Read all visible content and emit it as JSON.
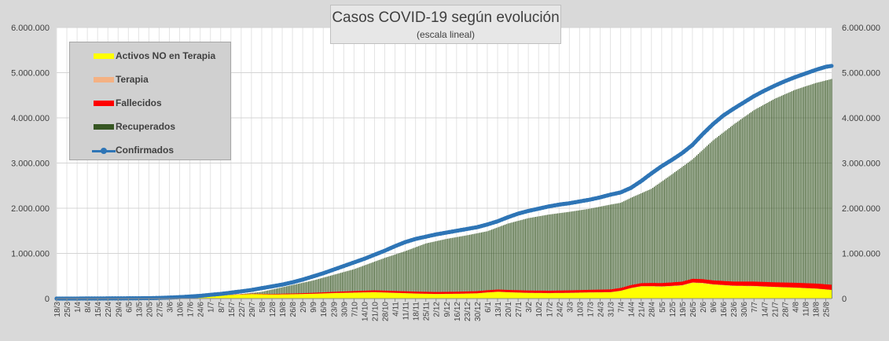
{
  "chart_data": {
    "type": "area",
    "title": "Casos COVID-19 según evolución",
    "subtitle": "(escala lineal)",
    "xlabel": "",
    "ylabel": "",
    "ylim": [
      0,
      6000000
    ],
    "y_ticks": [
      0,
      1000000,
      2000000,
      3000000,
      4000000,
      5000000,
      6000000
    ],
    "y_tick_labels": [
      "0",
      "1.000.000",
      "2.000.000",
      "3.000.000",
      "4.000.000",
      "5.000.000",
      "6.000.000"
    ],
    "secondary_y_tick_labels": [
      "0",
      "1.000.000",
      "2.000.000",
      "3.000.000",
      "4.000.000",
      "5.000.000",
      "6.000.000"
    ],
    "grid": true,
    "legend_position": "top-left",
    "x_tick_labels": [
      "18/3",
      "25/3",
      "1/4",
      "8/4",
      "15/4",
      "22/4",
      "29/4",
      "6/5",
      "13/5",
      "20/5",
      "27/5",
      "3/6",
      "10/6",
      "17/6",
      "24/6",
      "1/7",
      "8/7",
      "15/7",
      "22/7",
      "29/7",
      "5/8",
      "12/8",
      "19/8",
      "26/8",
      "2/9",
      "9/9",
      "16/9",
      "23/9",
      "30/9",
      "7/10",
      "14/10",
      "21/10",
      "28/10",
      "4/11",
      "11/11",
      "18/11",
      "25/11",
      "2/12",
      "9/12",
      "16/12",
      "23/12",
      "30/12",
      "6/1",
      "13/1",
      "20/1",
      "27/1",
      "3/2",
      "10/2",
      "17/2",
      "24/2",
      "3/3",
      "10/3",
      "17/3",
      "24/3",
      "31/3",
      "7/4",
      "14/4",
      "21/4",
      "28/4",
      "5/5",
      "12/5",
      "19/5",
      "26/5",
      "2/6",
      "9/6",
      "16/6",
      "23/6",
      "30/6",
      "7/7",
      "14/7",
      "21/7",
      "28/7",
      "4/8",
      "11/8",
      "18/8",
      "25/8"
    ],
    "x_tick_indices": [
      0,
      7,
      14,
      21,
      28,
      35,
      42,
      49,
      56,
      63,
      70,
      77,
      84,
      91,
      98,
      105,
      112,
      119,
      126,
      133,
      140,
      147,
      154,
      161,
      168,
      175,
      182,
      189,
      196,
      203,
      210,
      217,
      224,
      231,
      238,
      245,
      252,
      259,
      266,
      273,
      280,
      287,
      294,
      301,
      308,
      315,
      322,
      329,
      336,
      343,
      350,
      357,
      364,
      371,
      378,
      385,
      392,
      399,
      406,
      413,
      420,
      427,
      434,
      441,
      448,
      455,
      462,
      469,
      476,
      483,
      490,
      497,
      504,
      511,
      518,
      525
    ],
    "n_days": 530,
    "series": [
      {
        "name": "Activos NO en Terapia",
        "kind": "stacked-area",
        "color": "#ffff00",
        "points": [
          [
            0,
            0
          ],
          [
            40,
            3000
          ],
          [
            63,
            9000
          ],
          [
            84,
            25000
          ],
          [
            105,
            50000
          ],
          [
            119,
            80000
          ],
          [
            133,
            100000
          ],
          [
            147,
            90000
          ],
          [
            161,
            95000
          ],
          [
            175,
            105000
          ],
          [
            189,
            120000
          ],
          [
            203,
            130000
          ],
          [
            217,
            140000
          ],
          [
            231,
            125000
          ],
          [
            245,
            110000
          ],
          [
            259,
            100000
          ],
          [
            273,
            105000
          ],
          [
            287,
            115000
          ],
          [
            294,
            135000
          ],
          [
            301,
            150000
          ],
          [
            308,
            140000
          ],
          [
            322,
            125000
          ],
          [
            336,
            120000
          ],
          [
            350,
            125000
          ],
          [
            364,
            135000
          ],
          [
            378,
            140000
          ],
          [
            385,
            170000
          ],
          [
            392,
            230000
          ],
          [
            399,
            270000
          ],
          [
            406,
            270000
          ],
          [
            413,
            265000
          ],
          [
            420,
            275000
          ],
          [
            427,
            290000
          ],
          [
            434,
            350000
          ],
          [
            441,
            340000
          ],
          [
            448,
            310000
          ],
          [
            462,
            280000
          ],
          [
            476,
            275000
          ],
          [
            490,
            255000
          ],
          [
            504,
            240000
          ],
          [
            518,
            220000
          ],
          [
            529,
            190000
          ]
        ]
      },
      {
        "name": "Terapia",
        "kind": "stacked-area",
        "color": "#f4b183",
        "points": [
          [
            0,
            0
          ],
          [
            63,
            500
          ],
          [
            105,
            1000
          ],
          [
            147,
            2500
          ],
          [
            189,
            3500
          ],
          [
            217,
            4500
          ],
          [
            259,
            3500
          ],
          [
            294,
            3000
          ],
          [
            336,
            3500
          ],
          [
            378,
            4000
          ],
          [
            406,
            7000
          ],
          [
            434,
            7500
          ],
          [
            462,
            6500
          ],
          [
            490,
            5000
          ],
          [
            529,
            4000
          ]
        ]
      },
      {
        "name": "Fallecidos",
        "kind": "stacked-area",
        "color": "#ff0000",
        "points": [
          [
            0,
            0
          ],
          [
            63,
            500
          ],
          [
            105,
            2000
          ],
          [
            147,
            10000
          ],
          [
            189,
            25000
          ],
          [
            217,
            38000
          ],
          [
            245,
            40000
          ],
          [
            273,
            43000
          ],
          [
            301,
            48000
          ],
          [
            336,
            51000
          ],
          [
            364,
            55000
          ],
          [
            392,
            62000
          ],
          [
            420,
            75000
          ],
          [
            448,
            85000
          ],
          [
            476,
            95000
          ],
          [
            504,
            105000
          ],
          [
            529,
            112000
          ]
        ]
      },
      {
        "name": "Recuperados",
        "kind": "bars",
        "color": "#375623",
        "points": [
          [
            0,
            0
          ],
          [
            63,
            3000
          ],
          [
            105,
            25000
          ],
          [
            140,
            150000
          ],
          [
            175,
            400000
          ],
          [
            203,
            650000
          ],
          [
            224,
            900000
          ],
          [
            238,
            1050000
          ],
          [
            252,
            1220000
          ],
          [
            266,
            1320000
          ],
          [
            280,
            1400000
          ],
          [
            294,
            1490000
          ],
          [
            308,
            1660000
          ],
          [
            322,
            1780000
          ],
          [
            336,
            1860000
          ],
          [
            350,
            1920000
          ],
          [
            364,
            1990000
          ],
          [
            378,
            2080000
          ],
          [
            385,
            2120000
          ],
          [
            392,
            2230000
          ],
          [
            406,
            2430000
          ],
          [
            420,
            2750000
          ],
          [
            434,
            3080000
          ],
          [
            448,
            3500000
          ],
          [
            462,
            3850000
          ],
          [
            476,
            4170000
          ],
          [
            490,
            4420000
          ],
          [
            504,
            4620000
          ],
          [
            518,
            4770000
          ],
          [
            529,
            4860000
          ]
        ]
      },
      {
        "name": "Confirmados",
        "kind": "line-markers",
        "color": "#2e75b6",
        "points": [
          [
            0,
            80
          ],
          [
            14,
            1000
          ],
          [
            28,
            2500
          ],
          [
            42,
            4400
          ],
          [
            56,
            7000
          ],
          [
            63,
            9000
          ],
          [
            70,
            14000
          ],
          [
            77,
            22000
          ],
          [
            84,
            32000
          ],
          [
            91,
            45000
          ],
          [
            98,
            60000
          ],
          [
            105,
            83000
          ],
          [
            112,
            103000
          ],
          [
            119,
            130000
          ],
          [
            126,
            160000
          ],
          [
            133,
            190000
          ],
          [
            140,
            230000
          ],
          [
            147,
            270000
          ],
          [
            154,
            310000
          ],
          [
            161,
            360000
          ],
          [
            168,
            420000
          ],
          [
            175,
            490000
          ],
          [
            182,
            560000
          ],
          [
            189,
            640000
          ],
          [
            196,
            720000
          ],
          [
            203,
            800000
          ],
          [
            210,
            880000
          ],
          [
            217,
            970000
          ],
          [
            224,
            1060000
          ],
          [
            231,
            1160000
          ],
          [
            238,
            1250000
          ],
          [
            245,
            1320000
          ],
          [
            252,
            1370000
          ],
          [
            259,
            1420000
          ],
          [
            266,
            1460000
          ],
          [
            273,
            1500000
          ],
          [
            280,
            1540000
          ],
          [
            287,
            1580000
          ],
          [
            294,
            1640000
          ],
          [
            301,
            1710000
          ],
          [
            308,
            1800000
          ],
          [
            315,
            1880000
          ],
          [
            322,
            1940000
          ],
          [
            329,
            1990000
          ],
          [
            336,
            2040000
          ],
          [
            343,
            2080000
          ],
          [
            350,
            2110000
          ],
          [
            357,
            2150000
          ],
          [
            364,
            2190000
          ],
          [
            371,
            2240000
          ],
          [
            378,
            2300000
          ],
          [
            385,
            2350000
          ],
          [
            392,
            2450000
          ],
          [
            399,
            2600000
          ],
          [
            406,
            2770000
          ],
          [
            413,
            2930000
          ],
          [
            420,
            3070000
          ],
          [
            427,
            3220000
          ],
          [
            434,
            3400000
          ],
          [
            441,
            3640000
          ],
          [
            448,
            3860000
          ],
          [
            455,
            4050000
          ],
          [
            462,
            4200000
          ],
          [
            469,
            4340000
          ],
          [
            476,
            4480000
          ],
          [
            483,
            4600000
          ],
          [
            490,
            4710000
          ],
          [
            497,
            4810000
          ],
          [
            504,
            4900000
          ],
          [
            511,
            4980000
          ],
          [
            518,
            5060000
          ],
          [
            525,
            5130000
          ],
          [
            529,
            5150000
          ]
        ]
      }
    ]
  }
}
